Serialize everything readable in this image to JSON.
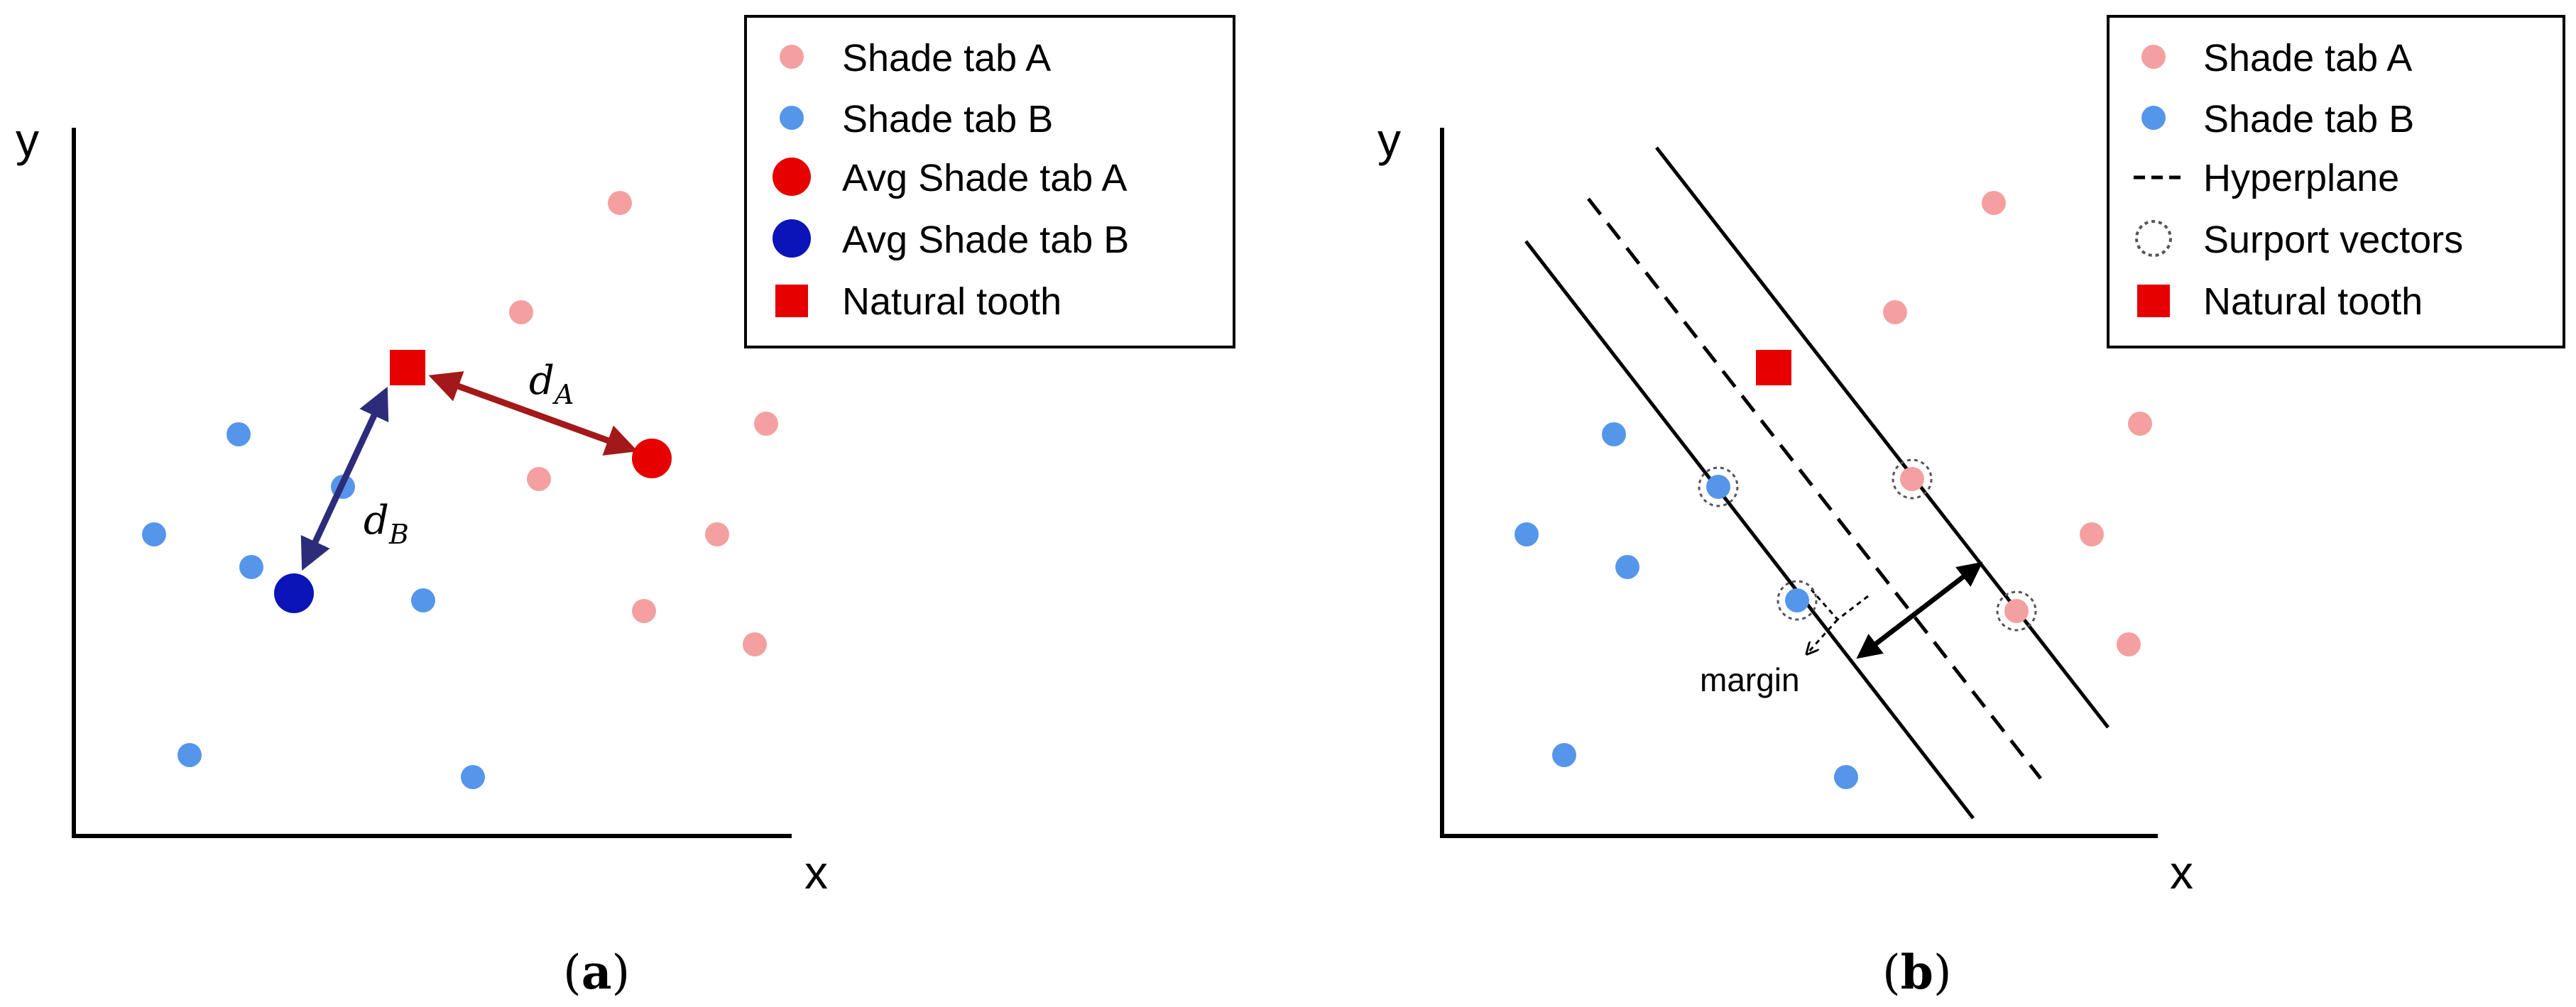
{
  "panel_a": {
    "axis_x_label": "x",
    "axis_y_label": "y",
    "caption_letter": "a",
    "distance_label_a": "d",
    "distance_label_a_sub": "A",
    "distance_label_b": "d",
    "distance_label_b_sub": "B",
    "legend": [
      {
        "label": "Shade tab A",
        "marker": "pink-dot"
      },
      {
        "label": "Shade tab B",
        "marker": "blue-dot"
      },
      {
        "label": "Avg Shade tab A",
        "marker": "red-dot"
      },
      {
        "label": "Avg Shade tab B",
        "marker": "navy-dot"
      },
      {
        "label": "Natural tooth",
        "marker": "red-square"
      }
    ]
  },
  "panel_b": {
    "axis_x_label": "x",
    "axis_y_label": "y",
    "caption_letter": "b",
    "margin_label": "margin",
    "legend": [
      {
        "label": "Shade tab A",
        "marker": "pink-dot"
      },
      {
        "label": "Shade tab B",
        "marker": "blue-dot"
      },
      {
        "label": "Hyperplane",
        "marker": "dashed-line"
      },
      {
        "label": "Surport vectors",
        "marker": "dotted-circle"
      },
      {
        "label": "Natural tooth",
        "marker": "red-square"
      }
    ]
  },
  "colors": {
    "shade_a": "#f4a0a0",
    "shade_b": "#5596ea",
    "avg_a": "#e60000",
    "avg_b": "#0a14b8",
    "tooth": "#e60000",
    "arrow_a": "#a31818",
    "arrow_b": "#2c2c7a",
    "ink": "#000000"
  }
}
